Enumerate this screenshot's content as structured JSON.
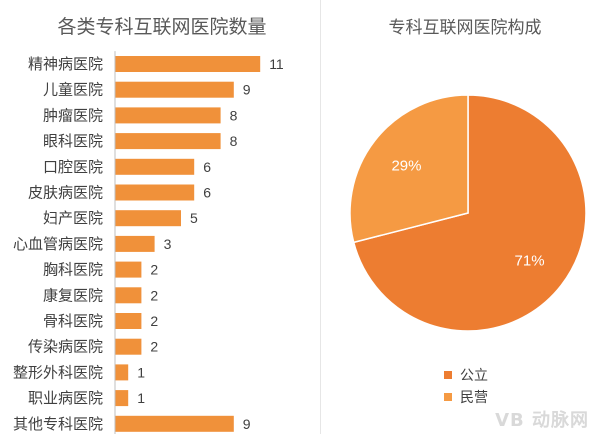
{
  "chart_data": [
    {
      "type": "bar",
      "orientation": "horizontal",
      "title": "各类专科互联网医院数量",
      "categories": [
        "精神病医院",
        "儿童医院",
        "肿瘤医院",
        "眼科医院",
        "口腔医院",
        "皮肤病医院",
        "妇产医院",
        "心血管病医院",
        "胸科医院",
        "康复医院",
        "骨科医院",
        "传染病医院",
        "整形外科医院",
        "职业病医院",
        "其他专科医院"
      ],
      "values": [
        11,
        9,
        8,
        8,
        6,
        6,
        5,
        3,
        2,
        2,
        2,
        2,
        1,
        1,
        9
      ],
      "xlim": [
        0,
        12
      ],
      "grid": false,
      "color": "#F0913A"
    },
    {
      "type": "pie",
      "title": "专科互联网医院构成",
      "labels": [
        "公立",
        "民营"
      ],
      "values": [
        71,
        29
      ],
      "value_labels": [
        "71%",
        "29%"
      ],
      "colors": [
        "#ED7D31",
        "#F59A43"
      ],
      "legend_position": "bottom"
    }
  ],
  "watermark": "VB 动脉网"
}
